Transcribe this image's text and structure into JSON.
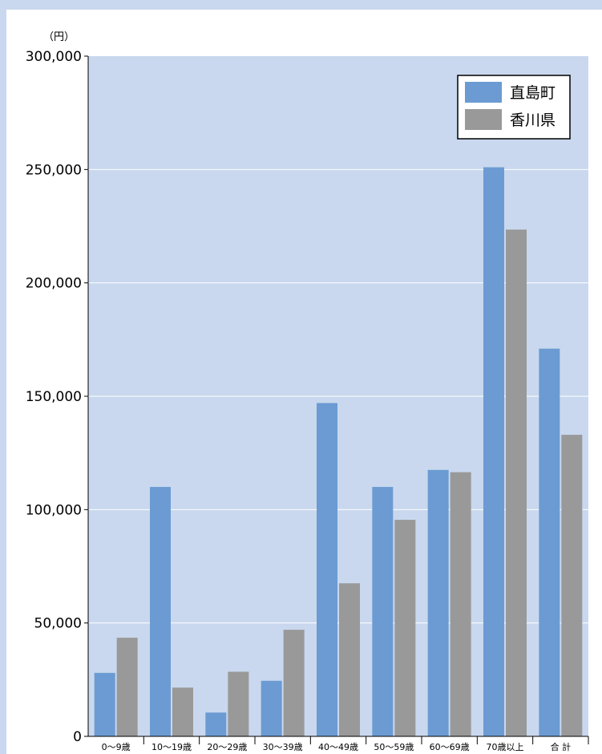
{
  "chart_data": {
    "type": "bar",
    "unit_label": "（円）",
    "categories": [
      "0～9歳",
      "10～19歳",
      "20～29歳",
      "30～39歳",
      "40～49歳",
      "50～59歳",
      "60～69歳",
      "70歳以上",
      "合 計"
    ],
    "series": [
      {
        "name": "直島町",
        "color": "#6b9bd2",
        "values": [
          28000,
          110000,
          10500,
          24500,
          147000,
          110000,
          117500,
          251000,
          171000
        ]
      },
      {
        "name": "香川県",
        "color": "#999999",
        "values": [
          43500,
          21500,
          28500,
          47000,
          67500,
          95500,
          116500,
          223500,
          133000
        ]
      }
    ],
    "ylim": [
      0,
      300000
    ],
    "yticks": [
      "0",
      "50,000",
      "100,000",
      "150,000",
      "200,000",
      "250,000",
      "300,000"
    ],
    "grid": true,
    "legend_position": "top-right",
    "plot_background": "#c9d8ee"
  }
}
